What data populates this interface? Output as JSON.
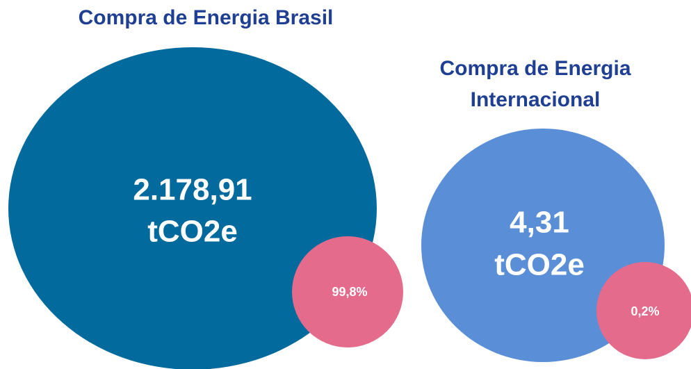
{
  "left": {
    "title": "Compra de Energia Brasil",
    "value": "2.178,91",
    "unit": "tCO2e",
    "share": "99,8%"
  },
  "right": {
    "title": [
      "Compra de Energia",
      "Internacional"
    ],
    "value": "4,31",
    "unit": "tCO2e",
    "share": "0,2%"
  }
}
